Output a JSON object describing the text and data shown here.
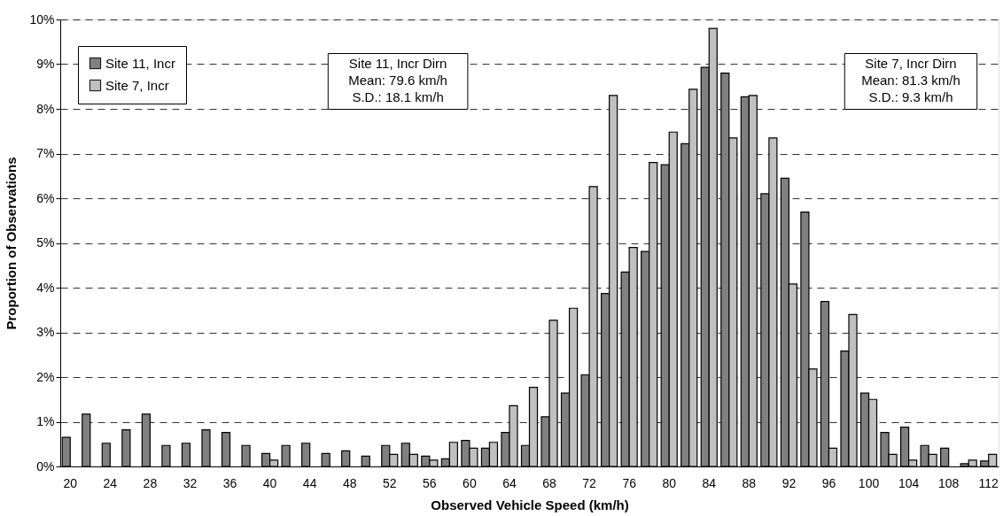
{
  "chart_data": {
    "type": "bar",
    "xlabel": "Observed Vehicle Speed (km/h)",
    "ylabel": "Proportion of Observations",
    "categories": [
      "20",
      null,
      "24",
      null,
      "28",
      null,
      "32",
      null,
      "36",
      null,
      "40",
      null,
      "44",
      null,
      "48",
      null,
      "52",
      null,
      "56",
      null,
      "60",
      null,
      "64",
      null,
      "68",
      null,
      "72",
      null,
      "76",
      null,
      "80",
      null,
      "84",
      null,
      "88",
      null,
      "92",
      null,
      "96",
      null,
      "100",
      null,
      "104",
      null,
      "108",
      null,
      "112"
    ],
    "series": [
      {
        "name": "Site 11, Incr",
        "color": "#808080",
        "values": [
          0.65,
          1.17,
          0.52,
          0.82,
          1.17,
          0.47,
          0.52,
          0.82,
          0.76,
          0.47,
          0.29,
          0.47,
          0.52,
          0.29,
          0.35,
          0.23,
          0.47,
          0.52,
          0.23,
          0.17,
          0.58,
          0.41,
          0.76,
          0.47,
          1.11,
          1.64,
          2.05,
          3.87,
          4.35,
          4.81,
          6.75,
          7.22,
          8.93,
          8.8,
          8.27,
          6.1,
          6.45,
          5.69,
          3.69,
          2.58,
          1.64,
          0.76,
          0.88,
          0.47,
          0.41,
          0.06,
          0.12
        ]
      },
      {
        "name": "Site 7, Incr",
        "color": "#c0c0c0",
        "values": [
          null,
          null,
          null,
          null,
          null,
          null,
          null,
          null,
          null,
          null,
          0.14,
          null,
          null,
          null,
          null,
          null,
          0.27,
          0.27,
          0.14,
          0.54,
          0.41,
          0.54,
          1.36,
          1.77,
          3.27,
          3.54,
          6.26,
          8.3,
          4.9,
          6.8,
          7.48,
          8.44,
          9.8,
          7.35,
          8.3,
          7.35,
          4.08,
          2.18,
          0.41,
          3.4,
          1.5,
          0.27,
          0.14,
          0.27,
          null,
          0.14,
          0.27
        ]
      }
    ],
    "ylim": [
      0,
      10
    ],
    "yticks": [
      {
        "value": 0,
        "label": "0%"
      },
      {
        "value": 1,
        "label": "1%"
      },
      {
        "value": 2,
        "label": "2%"
      },
      {
        "value": 3,
        "label": "3%"
      },
      {
        "value": 4,
        "label": "4%"
      },
      {
        "value": 5,
        "label": "5%"
      },
      {
        "value": 6,
        "label": "6%"
      },
      {
        "value": 7,
        "label": "7%"
      },
      {
        "value": 8,
        "label": "8%"
      },
      {
        "value": 9,
        "label": "9%"
      },
      {
        "value": 10,
        "label": "10%"
      }
    ],
    "grid": "y",
    "legend": "top left",
    "annotations": [
      "Site 11, Incr Dirn\nMean: 79.6 km/h\nS.D.: 18.1 km/h",
      "Site 7, Incr Dirn\nMean: 81.3 km/h\nS.D.: 9.3 km/h"
    ]
  }
}
